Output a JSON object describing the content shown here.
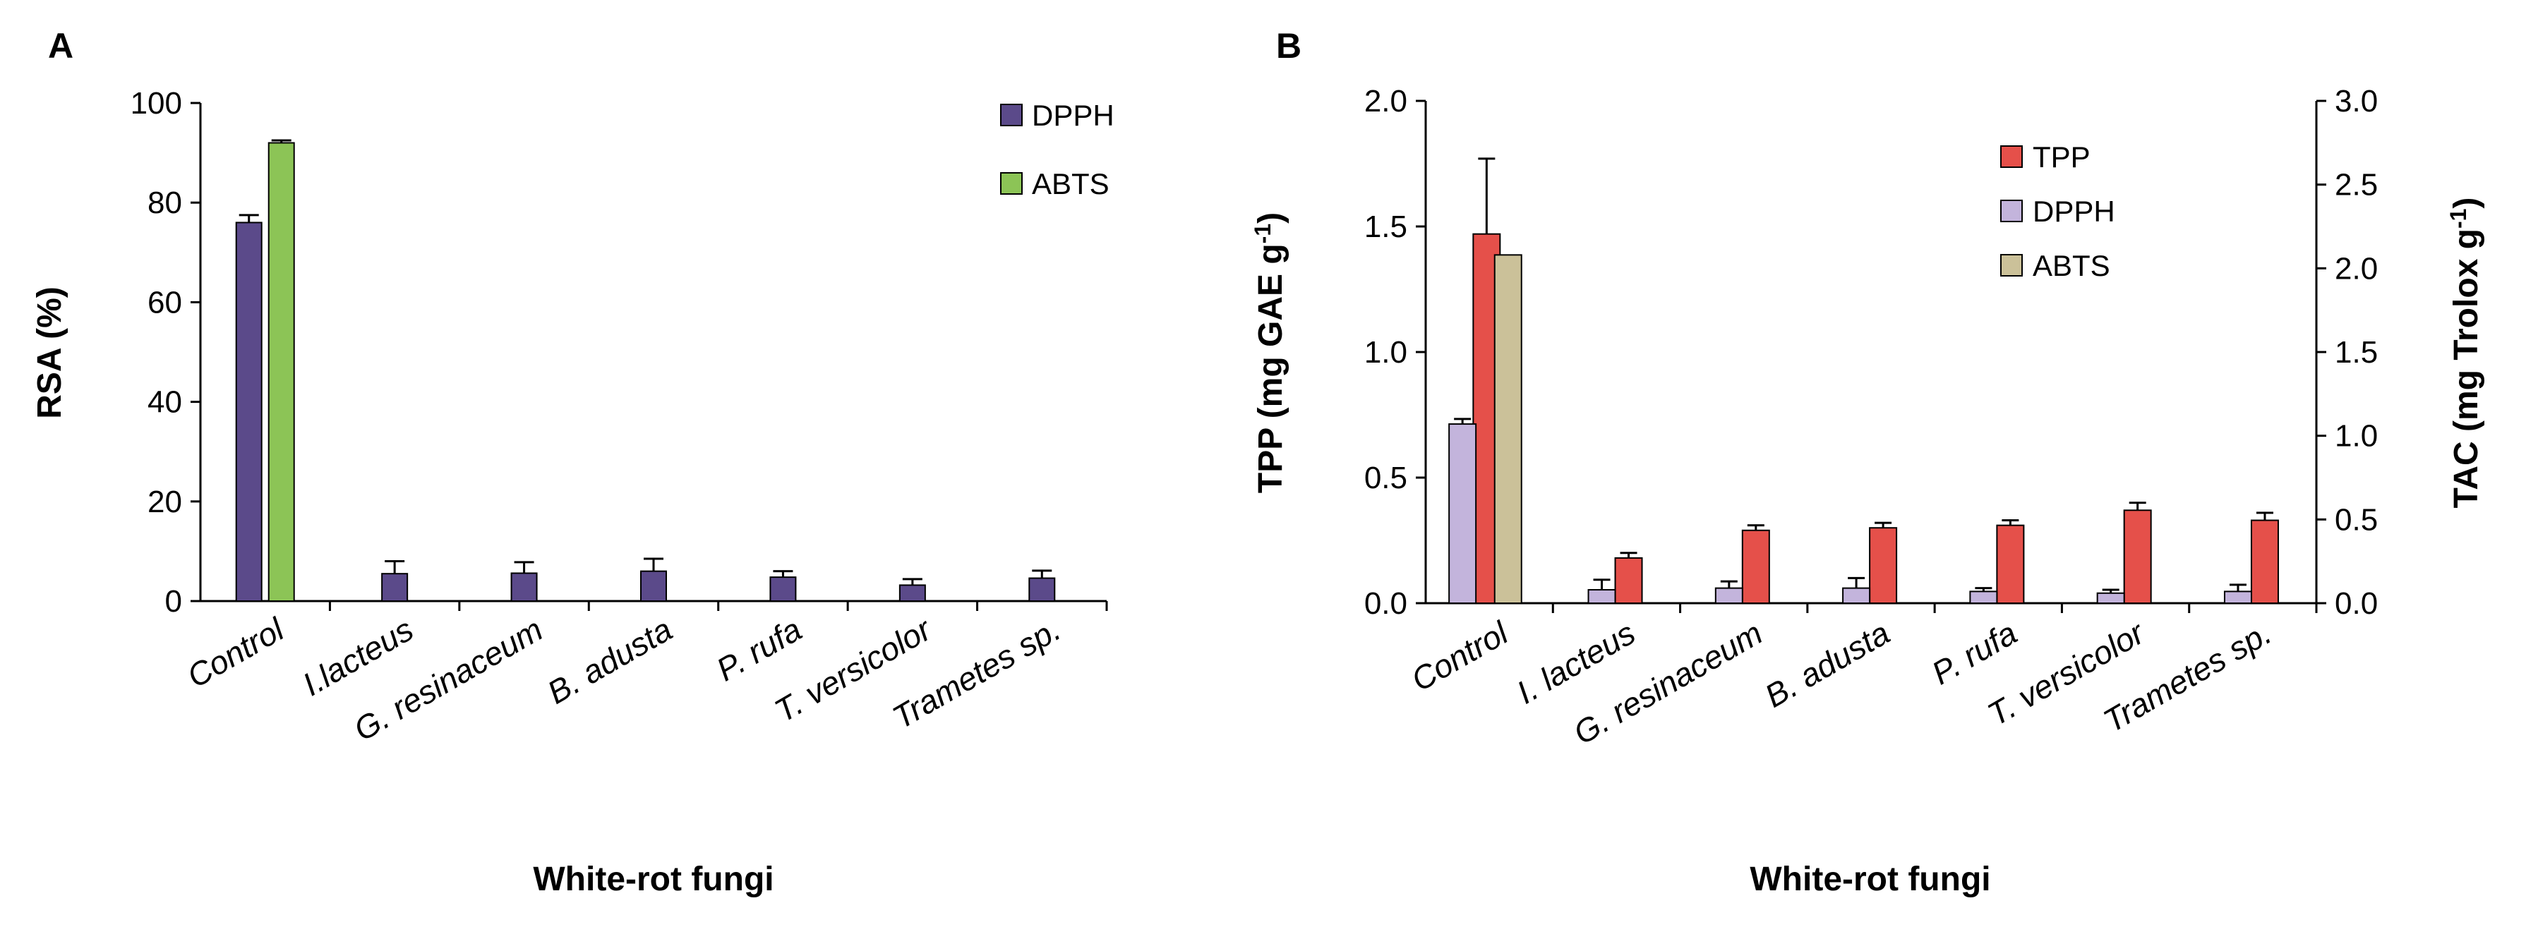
{
  "chart_data": [
    {
      "panel": "A",
      "type": "bar",
      "title": "",
      "xlabel": "White-rot fungi",
      "ylabel": "RSA  (%)",
      "ylim": [
        0,
        100
      ],
      "yticks": [
        "0",
        "20",
        "40",
        "60",
        "80",
        "100"
      ],
      "categories": [
        "Control",
        "I.lacteus",
        "G. resinaceum",
        "B. adusta",
        "P. rufa",
        "T. versicolor",
        "Trametes sp."
      ],
      "legend_position": "top-right",
      "series": [
        {
          "name": "DPPH",
          "color": "#5b4a8a",
          "values": [
            76,
            5.5,
            5.6,
            6,
            4.8,
            3.2,
            4.6
          ],
          "errors": [
            1.5,
            2.5,
            2.2,
            2.5,
            1.2,
            1.2,
            1.5
          ]
        },
        {
          "name": "ABTS",
          "color": "#8cc456",
          "values": [
            92,
            null,
            null,
            null,
            null,
            null,
            null
          ],
          "errors": [
            0.5,
            null,
            null,
            null,
            null,
            null,
            null
          ]
        }
      ]
    },
    {
      "panel": "B",
      "type": "bar",
      "title": "",
      "xlabel": "White-rot fungi",
      "ylabel": "TPP (mg GAE g-1)",
      "ylabel_right": "TAC (mg Trolox g-1)",
      "ylim": [
        0,
        2.0
      ],
      "ylim_right": [
        0,
        3.0
      ],
      "yticks": [
        "0.0",
        "0.5",
        "1.0",
        "1.5",
        "2.0"
      ],
      "yticks_right": [
        "0.0",
        "0.5",
        "1.0",
        "1.5",
        "2.0",
        "2.5",
        "3.0"
      ],
      "categories": [
        "Control",
        "I. lacteus",
        "G. resinaceum",
        "B. adusta",
        "P. rufa",
        "T. versicolor",
        "Trametes sp."
      ],
      "legend_position": "top-right",
      "series": [
        {
          "name": "TPP",
          "axis": "left",
          "color": "#e5504a",
          "values": [
            1.47,
            0.18,
            0.29,
            0.3,
            0.31,
            0.37,
            0.33
          ],
          "errors": [
            0.3,
            0.02,
            0.02,
            0.02,
            0.02,
            0.03,
            0.03
          ]
        },
        {
          "name": "DPPH",
          "axis": "right",
          "color": "#c3b4dc",
          "values": [
            1.07,
            0.08,
            0.09,
            0.09,
            0.07,
            0.06,
            0.07
          ],
          "errors": [
            0.03,
            0.06,
            0.04,
            0.06,
            0.02,
            0.02,
            0.04
          ]
        },
        {
          "name": "ABTS",
          "axis": "right",
          "color": "#cbc199",
          "values": [
            2.08,
            null,
            null,
            null,
            null,
            null,
            null
          ],
          "errors": [
            null,
            null,
            null,
            null,
            null,
            null,
            null
          ]
        }
      ]
    }
  ]
}
